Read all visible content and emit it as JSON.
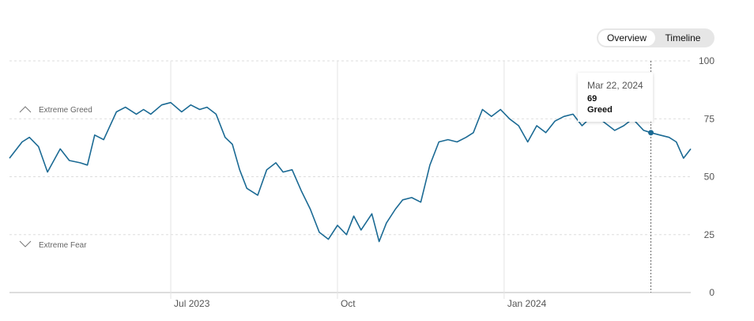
{
  "toggle": {
    "overview_label": "Overview",
    "timeline_label": "Timeline"
  },
  "tooltip": {
    "date": "Mar 22, 2024",
    "value": "69",
    "rating": "Greed"
  },
  "colors": {
    "line": "#1b6a94",
    "grid": "#dddddd",
    "axis_text": "#555555"
  },
  "chart_data": {
    "type": "line",
    "title": "",
    "xlabel": "",
    "ylabel": "",
    "ylim": [
      0,
      100
    ],
    "yticks": [
      0,
      25,
      50,
      75,
      100
    ],
    "grid": true,
    "x_ticks": [
      "Jul 2023",
      "Oct",
      "Jan 2024"
    ],
    "zone_labels": {
      "top": "Extreme Greed",
      "bottom": "Extreme Fear"
    },
    "highlight": {
      "date": "Mar 22, 2024",
      "value": 69
    },
    "series": [
      {
        "x": [
          "2023-04-03",
          "2023-04-10",
          "2023-04-14",
          "2023-04-19",
          "2023-04-24",
          "2023-05-01",
          "2023-05-06",
          "2023-05-12",
          "2023-05-16",
          "2023-05-20",
          "2023-05-25",
          "2023-06-01",
          "2023-06-06",
          "2023-06-12",
          "2023-06-16",
          "2023-06-20",
          "2023-06-26",
          "2023-07-01",
          "2023-07-07",
          "2023-07-12",
          "2023-07-17",
          "2023-07-21",
          "2023-07-26",
          "2023-07-31",
          "2023-08-04",
          "2023-08-08",
          "2023-08-12",
          "2023-08-18",
          "2023-08-23",
          "2023-08-28",
          "2023-09-01",
          "2023-09-06",
          "2023-09-11",
          "2023-09-16",
          "2023-09-21",
          "2023-09-26",
          "2023-10-01",
          "2023-10-06",
          "2023-10-10",
          "2023-10-14",
          "2023-10-20",
          "2023-10-24",
          "2023-10-28",
          "2023-11-02",
          "2023-11-06",
          "2023-11-11",
          "2023-11-16",
          "2023-11-21",
          "2023-11-26",
          "2023-12-01",
          "2023-12-06",
          "2023-12-11",
          "2023-12-15",
          "2023-12-20",
          "2023-12-25",
          "2023-12-30",
          "2024-01-04",
          "2024-01-09",
          "2024-01-14",
          "2024-01-19",
          "2024-01-24",
          "2024-01-29",
          "2024-02-03",
          "2024-02-08",
          "2024-02-13",
          "2024-02-17",
          "2024-02-21",
          "2024-02-26",
          "2024-03-02",
          "2024-03-07",
          "2024-03-12",
          "2024-03-18",
          "2024-03-22",
          "2024-03-27",
          "2024-04-01",
          "2024-04-05",
          "2024-04-09",
          "2024-04-13"
        ],
        "y": [
          58,
          65,
          67,
          63,
          52,
          62,
          57,
          56,
          55,
          68,
          66,
          78,
          80,
          77,
          79,
          77,
          81,
          82,
          78,
          81,
          79,
          80,
          77,
          67,
          64,
          53,
          45,
          42,
          53,
          56,
          52,
          53,
          44,
          36,
          26,
          23,
          29,
          25,
          33,
          27,
          34,
          22,
          30,
          36,
          40,
          41,
          39,
          55,
          65,
          66,
          65,
          67,
          69,
          79,
          76,
          79,
          75,
          72,
          65,
          72,
          69,
          74,
          76,
          77,
          72,
          75,
          76,
          73,
          70,
          72,
          75,
          70,
          69,
          68,
          67,
          65,
          58,
          62
        ]
      }
    ]
  }
}
